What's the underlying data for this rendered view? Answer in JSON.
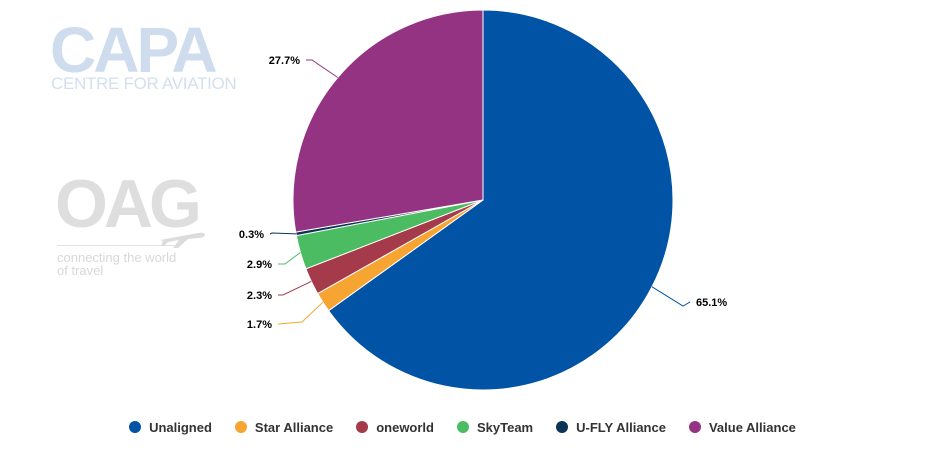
{
  "watermarks": {
    "capa_title": "CAPA",
    "capa_subtitle": "CENTRE FOR AVIATION",
    "oag_title": "OAG",
    "oag_tagline": "connecting the world of travel"
  },
  "chart_data": {
    "type": "pie",
    "title": "",
    "start_direction": "12 o'clock, clockwise",
    "categories": [
      "Unaligned",
      "Star Alliance",
      "oneworld",
      "SkyTeam",
      "U-FLY Alliance",
      "Value Alliance"
    ],
    "values": [
      65.1,
      1.7,
      2.3,
      2.9,
      0.3,
      27.7
    ],
    "labels": [
      "65.1%",
      "1.7%",
      "2.3%",
      "2.9%",
      "0.3%",
      "27.7%"
    ],
    "colors": [
      "#0053a5",
      "#f6a533",
      "#a53a4b",
      "#4cbc63",
      "#0d3355",
      "#933381"
    ],
    "legend_position": "bottom"
  },
  "legend": {
    "items": [
      {
        "label": "Unaligned",
        "color": "#0053a5"
      },
      {
        "label": "Star Alliance",
        "color": "#f6a533"
      },
      {
        "label": "oneworld",
        "color": "#a53a4b"
      },
      {
        "label": "SkyTeam",
        "color": "#4cbc63"
      },
      {
        "label": "U-FLY Alliance",
        "color": "#0d3355"
      },
      {
        "label": "Value Alliance",
        "color": "#933381"
      }
    ]
  }
}
